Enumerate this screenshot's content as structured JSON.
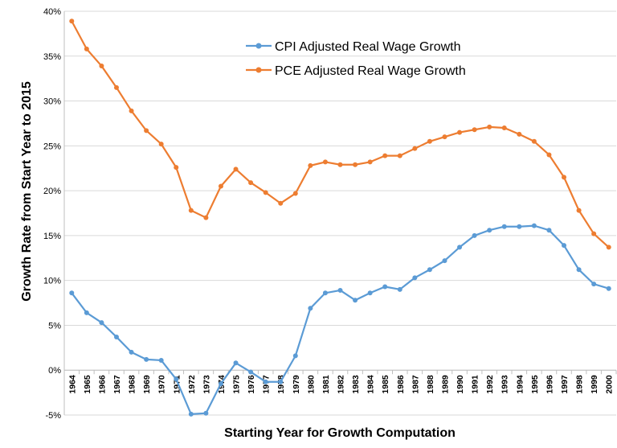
{
  "chart_data": {
    "type": "line",
    "title": "",
    "xlabel": "Starting Year for Growth Computation",
    "ylabel": "Growth Rate from Start Year to 2015",
    "ylim": [
      -5,
      40
    ],
    "ytick_values": [
      -5,
      0,
      5,
      10,
      15,
      20,
      25,
      30,
      35,
      40
    ],
    "ytick_labels": [
      "-5%",
      "0%",
      "5%",
      "10%",
      "15%",
      "20%",
      "25%",
      "30%",
      "35%",
      "40%"
    ],
    "grid": "horizontal",
    "legend_position": "top-center",
    "categories": [
      "1964",
      "1965",
      "1966",
      "1967",
      "1968",
      "1969",
      "1970",
      "1971",
      "1972",
      "1973",
      "1974",
      "1975",
      "1976",
      "1977",
      "1978",
      "1979",
      "1980",
      "1981",
      "1982",
      "1983",
      "1984",
      "1985",
      "1986",
      "1987",
      "1988",
      "1989",
      "1990",
      "1991",
      "1992",
      "1993",
      "1994",
      "1995",
      "1996",
      "1997",
      "1998",
      "1999",
      "2000"
    ],
    "series": [
      {
        "name": "CPI Adjusted Real Wage Growth",
        "color": "#5b9bd5",
        "values": [
          8.6,
          6.4,
          5.3,
          3.7,
          2.0,
          1.2,
          1.1,
          -1.0,
          -4.9,
          -4.8,
          -1.5,
          0.8,
          -0.2,
          -1.3,
          -1.3,
          1.6,
          6.9,
          8.6,
          8.9,
          7.8,
          8.6,
          9.3,
          9.0,
          10.3,
          11.2,
          12.2,
          13.7,
          15.0,
          15.6,
          16.0,
          16.0,
          16.1,
          15.6,
          13.9,
          11.2,
          9.6,
          9.1
        ]
      },
      {
        "name": "PCE Adjusted Real Wage Growth",
        "color": "#ed7d31",
        "values": [
          38.9,
          35.8,
          33.9,
          31.5,
          28.9,
          26.7,
          25.2,
          22.6,
          17.8,
          17.0,
          20.5,
          22.4,
          20.9,
          19.8,
          18.6,
          19.7,
          22.8,
          23.2,
          22.9,
          22.9,
          23.2,
          23.9,
          23.9,
          24.7,
          25.5,
          26.0,
          26.5,
          26.8,
          27.1,
          27.0,
          26.3,
          25.5,
          24.0,
          21.5,
          17.8,
          15.2,
          13.7
        ]
      }
    ]
  }
}
